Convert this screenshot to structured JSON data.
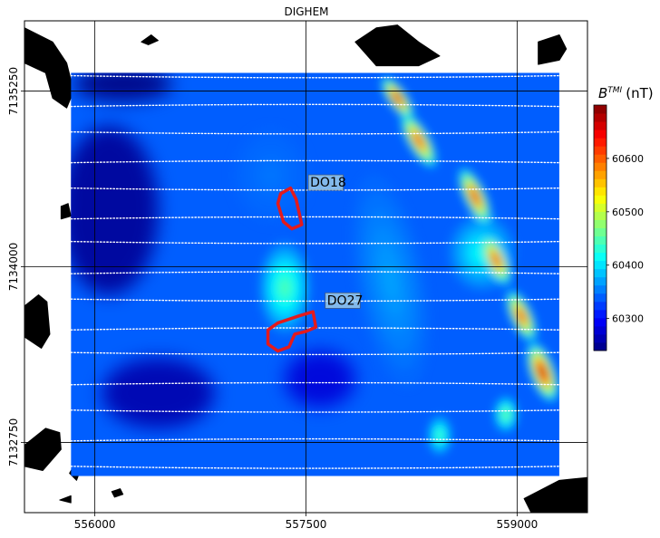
{
  "chart_data": {
    "type": "heatmap",
    "title": "DIGHEM",
    "xlabel": "",
    "ylabel": "",
    "xlim": [
      555500,
      559500
    ],
    "ylim": [
      7132250,
      7135750
    ],
    "x_ticks": [
      {
        "value": 556000,
        "label": "556000"
      },
      {
        "value": 557500,
        "label": "557500"
      },
      {
        "value": 559000,
        "label": "559000"
      }
    ],
    "y_ticks": [
      {
        "value": 7132750,
        "label": "7132750"
      },
      {
        "value": 7134000,
        "label": "7134000"
      },
      {
        "value": 7135250,
        "label": "7135250"
      }
    ],
    "grid": true,
    "colorbar": {
      "label": "B^{TMI} (nT)",
      "label_main": "B",
      "label_sup": "TMI",
      "label_unit": "(nT)",
      "min": 60240,
      "max": 60700,
      "ticks": [
        {
          "value": 60300,
          "label": "60300"
        },
        {
          "value": 60400,
          "label": "60400"
        },
        {
          "value": 60500,
          "label": "60500"
        },
        {
          "value": 60600,
          "label": "60600"
        }
      ],
      "colormap": "jet",
      "position": "right"
    },
    "annotations": [
      {
        "label": "DO18",
        "x": 557530,
        "y": 7134570
      },
      {
        "label": "DO27",
        "x": 557650,
        "y": 7133730
      }
    ],
    "outlines": [
      {
        "name": "DO18",
        "color": "#e41a1c",
        "points": [
          [
            557320,
            7134520
          ],
          [
            557390,
            7134560
          ],
          [
            557430,
            7134480
          ],
          [
            557470,
            7134300
          ],
          [
            557400,
            7134270
          ],
          [
            557340,
            7134320
          ],
          [
            557300,
            7134450
          ]
        ]
      },
      {
        "name": "DO27",
        "color": "#e41a1c",
        "points": [
          [
            557300,
            7133600
          ],
          [
            557450,
            7133650
          ],
          [
            557550,
            7133680
          ],
          [
            557570,
            7133570
          ],
          [
            557500,
            7133540
          ],
          [
            557420,
            7133520
          ],
          [
            557380,
            7133430
          ],
          [
            557300,
            7133400
          ],
          [
            557230,
            7133450
          ],
          [
            557230,
            7133550
          ]
        ]
      }
    ],
    "flight_lines_y": [
      7135350,
      7135150,
      7134950,
      7134750,
      7134550,
      7134350,
      7134170,
      7133960,
      7133760,
      7133560,
      7133380,
      7133170,
      7132970,
      7132770,
      7132570
    ],
    "survey_extent": {
      "x": [
        555830,
        559300
      ],
      "y": [
        7132510,
        7135380
      ]
    },
    "anomalies": [
      {
        "x": 558150,
        "y": 7135200,
        "value": 60680,
        "rx": 60,
        "ry": 160,
        "rot": -35
      },
      {
        "x": 558300,
        "y": 7134900,
        "value": 60650,
        "rx": 70,
        "ry": 200,
        "rot": -30
      },
      {
        "x": 558700,
        "y": 7134500,
        "value": 60660,
        "rx": 70,
        "ry": 200,
        "rot": -25
      },
      {
        "x": 558850,
        "y": 7134050,
        "value": 60650,
        "rx": 70,
        "ry": 180,
        "rot": -25
      },
      {
        "x": 559030,
        "y": 7133650,
        "value": 60650,
        "rx": 70,
        "ry": 180,
        "rot": -25
      },
      {
        "x": 559180,
        "y": 7133250,
        "value": 60700,
        "rx": 80,
        "ry": 200,
        "rot": -20
      },
      {
        "x": 558750,
        "y": 7134100,
        "value": 60420,
        "rx": 220,
        "ry": 250,
        "rot": 0
      },
      {
        "x": 557350,
        "y": 7133850,
        "value": 60450,
        "rx": 170,
        "ry": 300,
        "rot": 0
      },
      {
        "x": 558920,
        "y": 7132950,
        "value": 60470,
        "rx": 80,
        "ry": 120,
        "rot": 0
      },
      {
        "x": 558450,
        "y": 7132800,
        "value": 60450,
        "rx": 80,
        "ry": 130,
        "rot": 0
      },
      {
        "x": 557250,
        "y": 7134650,
        "value": 60350,
        "rx": 260,
        "ry": 320,
        "rot": 0
      },
      {
        "x": 558100,
        "y": 7133900,
        "value": 60370,
        "rx": 230,
        "ry": 700,
        "rot": -10
      }
    ],
    "background_value": 60340,
    "low_regions": [
      {
        "x": 556100,
        "y": 7134400,
        "value": 60250,
        "rx": 350,
        "ry": 600
      },
      {
        "x": 556450,
        "y": 7133100,
        "value": 60260,
        "rx": 400,
        "ry": 250
      },
      {
        "x": 556200,
        "y": 7135300,
        "value": 60240,
        "rx": 350,
        "ry": 120
      },
      {
        "x": 557600,
        "y": 7133200,
        "value": 60280,
        "rx": 250,
        "ry": 200
      }
    ],
    "topo_patches": [
      {
        "name": "nw",
        "points": [
          [
            555500,
            7135700
          ],
          [
            555700,
            7135600
          ],
          [
            555800,
            7135450
          ],
          [
            555850,
            7135250
          ],
          [
            555800,
            7135130
          ],
          [
            555700,
            7135200
          ],
          [
            555650,
            7135380
          ],
          [
            555500,
            7135450
          ]
        ]
      },
      {
        "name": "n-center",
        "points": [
          [
            556330,
            7135600
          ],
          [
            556400,
            7135650
          ],
          [
            556450,
            7135610
          ],
          [
            556380,
            7135580
          ]
        ]
      },
      {
        "name": "ne-top",
        "points": [
          [
            557850,
            7135600
          ],
          [
            558000,
            7135700
          ],
          [
            558150,
            7135720
          ],
          [
            558300,
            7135600
          ],
          [
            558450,
            7135500
          ],
          [
            558300,
            7135430
          ],
          [
            558000,
            7135430
          ]
        ]
      },
      {
        "name": "ne-right",
        "points": [
          [
            559150,
            7135600
          ],
          [
            559300,
            7135650
          ],
          [
            559350,
            7135550
          ],
          [
            559300,
            7135470
          ],
          [
            559150,
            7135440
          ]
        ]
      },
      {
        "name": "w-small",
        "points": [
          [
            555760,
            7134430
          ],
          [
            555810,
            7134450
          ],
          [
            555830,
            7134360
          ],
          [
            555760,
            7134340
          ]
        ]
      },
      {
        "name": "w-mid",
        "points": [
          [
            555500,
            7133720
          ],
          [
            555600,
            7133800
          ],
          [
            555660,
            7133750
          ],
          [
            555680,
            7133520
          ],
          [
            555620,
            7133420
          ],
          [
            555500,
            7133500
          ]
        ]
      },
      {
        "name": "sw",
        "points": [
          [
            555500,
            7132730
          ],
          [
            555650,
            7132850
          ],
          [
            555750,
            7132820
          ],
          [
            555760,
            7132700
          ],
          [
            555630,
            7132550
          ],
          [
            555500,
            7132580
          ]
        ]
      },
      {
        "name": "sw-right",
        "points": [
          [
            555820,
            7132530
          ],
          [
            555860,
            7132600
          ],
          [
            555900,
            7132560
          ],
          [
            555870,
            7132480
          ]
        ]
      },
      {
        "name": "se",
        "points": [
          [
            559050,
            7132350
          ],
          [
            559300,
            7132480
          ],
          [
            559500,
            7132500
          ],
          [
            559500,
            7132250
          ],
          [
            559100,
            7132250
          ]
        ]
      },
      {
        "name": "s-small-1",
        "points": [
          [
            556120,
            7132400
          ],
          [
            556180,
            7132420
          ],
          [
            556200,
            7132380
          ],
          [
            556140,
            7132360
          ]
        ]
      },
      {
        "name": "s-small-2",
        "points": [
          [
            555750,
            7132340
          ],
          [
            555830,
            7132370
          ],
          [
            555830,
            7132320
          ]
        ]
      }
    ]
  }
}
